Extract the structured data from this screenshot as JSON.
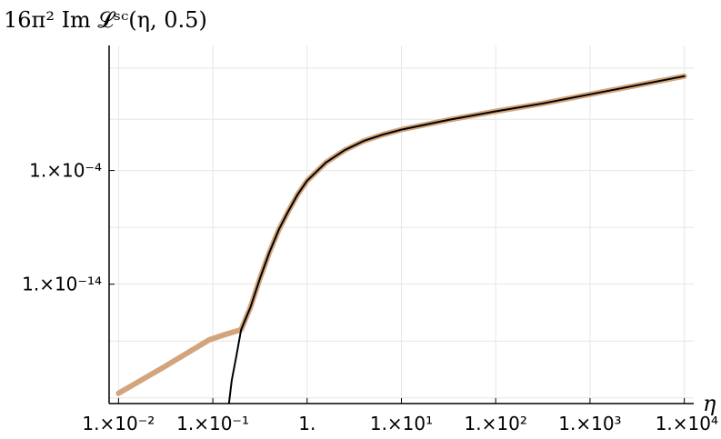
{
  "chart_data": {
    "type": "line",
    "title": "16π² Im 𝓛ˢᶜ(η, 0.5)",
    "xlabel": "η",
    "ylabel": "",
    "x_scale": "log",
    "y_scale": "log",
    "xlim_log10": [
      -2.1,
      4.1
    ],
    "ylim_log10": [
      -24.5,
      7.0
    ],
    "grid": true,
    "x_ticks": [
      {
        "value": 0.01,
        "label": "1.×10⁻²"
      },
      {
        "value": 0.1,
        "label": "1.×10⁻¹"
      },
      {
        "value": 1,
        "label": "1."
      },
      {
        "value": 10,
        "label": "1.×10¹"
      },
      {
        "value": 100,
        "label": "1.×10²"
      },
      {
        "value": 1000,
        "label": "1.×10³"
      },
      {
        "value": 10000,
        "label": "1.×10⁴"
      }
    ],
    "y_ticks": [
      {
        "value": 0.0001,
        "label": "1.×10⁻⁴"
      },
      {
        "value": 1e-14,
        "label": "1.×10⁻¹⁴"
      }
    ],
    "y_grid_log10": [
      -24,
      -19,
      -14,
      -9,
      -4,
      0.5,
      5
    ],
    "series": [
      {
        "name": "",
        "color": "#d2a57d",
        "width": 6,
        "points_log10": [
          [
            -2.0,
            -23.6
          ],
          [
            -1.5,
            -21.2
          ],
          [
            -1.04,
            -18.9
          ],
          [
            -0.9,
            -18.5
          ],
          [
            -0.7,
            -18.0
          ],
          [
            -0.6,
            -16.0
          ],
          [
            -0.5,
            -13.5
          ],
          [
            -0.4,
            -11.2
          ],
          [
            -0.3,
            -9.2
          ],
          [
            -0.2,
            -7.6
          ],
          [
            -0.1,
            -6.1
          ],
          [
            0.0,
            -4.9
          ],
          [
            0.2,
            -3.3
          ],
          [
            0.4,
            -2.2
          ],
          [
            0.6,
            -1.4
          ],
          [
            0.8,
            -0.85
          ],
          [
            1.0,
            -0.4
          ],
          [
            1.5,
            0.45
          ],
          [
            2.0,
            1.2
          ],
          [
            2.5,
            1.9
          ],
          [
            3.0,
            2.7
          ],
          [
            3.5,
            3.5
          ],
          [
            4.0,
            4.3
          ]
        ]
      },
      {
        "name": "",
        "color": "#000000",
        "width": 2,
        "points_log10": [
          [
            -0.85,
            -26.0
          ],
          [
            -0.8,
            -22.5
          ],
          [
            -0.75,
            -20.3
          ],
          [
            -0.7,
            -18.0
          ],
          [
            -0.6,
            -16.0
          ],
          [
            -0.5,
            -13.5
          ],
          [
            -0.4,
            -11.2
          ],
          [
            -0.3,
            -9.2
          ],
          [
            -0.2,
            -7.6
          ],
          [
            -0.1,
            -6.1
          ],
          [
            0.0,
            -4.9
          ],
          [
            0.2,
            -3.3
          ],
          [
            0.4,
            -2.2
          ],
          [
            0.6,
            -1.4
          ],
          [
            0.8,
            -0.85
          ],
          [
            1.0,
            -0.4
          ],
          [
            1.5,
            0.45
          ],
          [
            2.0,
            1.2
          ],
          [
            2.5,
            1.9
          ],
          [
            3.0,
            2.7
          ],
          [
            3.5,
            3.5
          ],
          [
            4.0,
            4.3
          ]
        ]
      }
    ]
  }
}
